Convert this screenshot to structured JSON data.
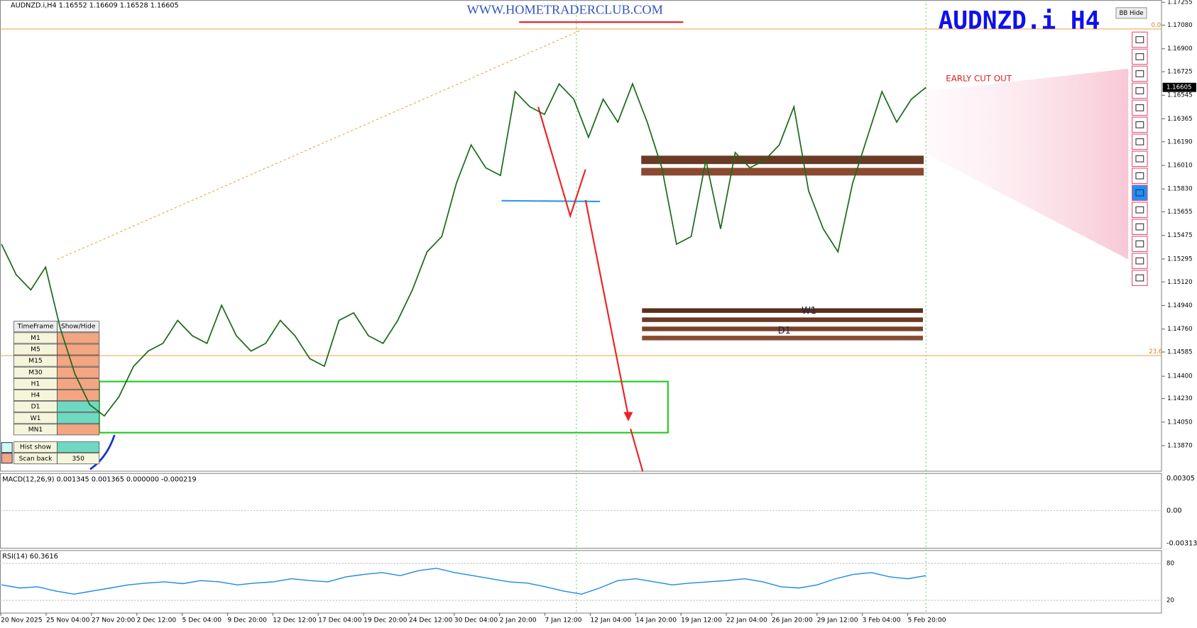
{
  "header": {
    "symbol_info": "AUDNZD.i,H4  1.16552 1.16609 1.16528 1.16605",
    "watermark": "WWW.HOMETRADERCLUB.COM",
    "symbol": "AUDNZD.i  H4",
    "bb_button": "BB Hide",
    "note": "EARLY CUT OUT"
  },
  "price_chart": {
    "ylim": [
      1.13678,
      1.17272
    ],
    "yticks": [
      1.17255,
      {
        "value": 1.1708,
        "label": "1.17080"
      },
      {
        "value": 1.169,
        "label": "1.16900"
      },
      1.16725,
      1.16545,
      1.16365,
      {
        "value": 1.1619,
        "label": "1.16190"
      },
      {
        "value": 1.1601,
        "label": "1.16010"
      },
      {
        "value": 1.1583,
        "label": "1.15830"
      },
      1.15655,
      1.15475,
      1.15295,
      {
        "value": 1.1512,
        "label": "1.15120"
      },
      {
        "value": 1.1494,
        "label": "1.14940"
      },
      {
        "value": 1.1476,
        "label": "1.14760"
      },
      1.14585,
      {
        "value": 1.144,
        "label": "1.14400"
      },
      {
        "value": 1.1423,
        "label": "1.14230"
      },
      {
        "value": 1.1405,
        "label": "1.14050"
      },
      {
        "value": 1.1387,
        "label": "1.13870"
      }
    ],
    "current_price": 1.16605,
    "closes": [
      1.15408,
      1.15175,
      1.15059,
      1.15233,
      1.14767,
      1.14418,
      1.14185,
      1.14097,
      1.14243,
      1.14476,
      1.14592,
      1.14651,
      1.14826,
      1.14709,
      1.14651,
      1.14942,
      1.14709,
      1.14592,
      1.14651,
      1.14826,
      1.14709,
      1.14534,
      1.14476,
      1.14826,
      1.14884,
      1.14709,
      1.14651,
      1.14826,
      1.15059,
      1.1535,
      1.15466,
      1.15874,
      1.16166,
      1.15991,
      1.15933,
      1.16573,
      1.16457,
      1.16399,
      1.16632,
      1.16515,
      1.16224,
      1.16515,
      1.1634,
      1.16632,
      1.1634,
      1.15991,
      1.15408,
      1.15466,
      1.16049,
      1.15525,
      1.16107,
      1.15991,
      1.16049,
      1.16166,
      1.16457,
      1.15816,
      1.15525,
      1.1535,
      1.15874,
      1.16224,
      1.16573,
      1.1634,
      1.16515,
      1.16605
    ],
    "fib_labels": [
      "0.0",
      "23.6"
    ],
    "zone_labels": [
      "W1",
      "D1"
    ]
  },
  "macd": {
    "label": "MACD(12,26,9) 0.001345 0.001365 0.000000 -0.000219",
    "ticks": [
      "0.00305",
      "0.00",
      "-0.00313"
    ]
  },
  "rsi": {
    "label": "RSI(14) 60.3616",
    "ylim": [
      0,
      100
    ],
    "yticks": [
      80,
      20
    ],
    "values": [
      45,
      40,
      42,
      35,
      30,
      35,
      40,
      45,
      48,
      50,
      47,
      52,
      50,
      45,
      48,
      50,
      55,
      52,
      50,
      58,
      62,
      65,
      60,
      68,
      72,
      65,
      60,
      55,
      50,
      48,
      42,
      35,
      30,
      40,
      52,
      55,
      50,
      45,
      48,
      50,
      52,
      55,
      50,
      42,
      40,
      45,
      55,
      62,
      65,
      58,
      55,
      60
    ]
  },
  "dates": [
    "20 Nov 2025",
    "25 Nov 04:00",
    "27 Nov 20:00",
    "2 Dec 12:00",
    "5 Dec 04:00",
    "9 Dec 20:00",
    "12 Dec 12:00",
    "17 Dec 04:00",
    "19 Dec 20:00",
    "24 Dec 12:00",
    "30 Dec 04:00",
    "2 Jan 20:00",
    "7 Jan 12:00",
    "12 Jan 04:00",
    "14 Jan 20:00",
    "19 Jan 12:00",
    "22 Jan 04:00",
    "26 Jan 20:00",
    "29 Jan 12:00",
    "3 Feb 04:00",
    "5 Feb 20:00"
  ],
  "timeframe_panel": {
    "headers": [
      "TimeFrame",
      "Show/Hide"
    ],
    "rows": [
      "M1",
      "M5",
      "M15",
      "M30",
      "H1",
      "H4",
      "D1",
      "W1",
      "MN1"
    ],
    "hist_show": "Hist show",
    "scan_back": "Scan back",
    "scan_value": "350"
  }
}
